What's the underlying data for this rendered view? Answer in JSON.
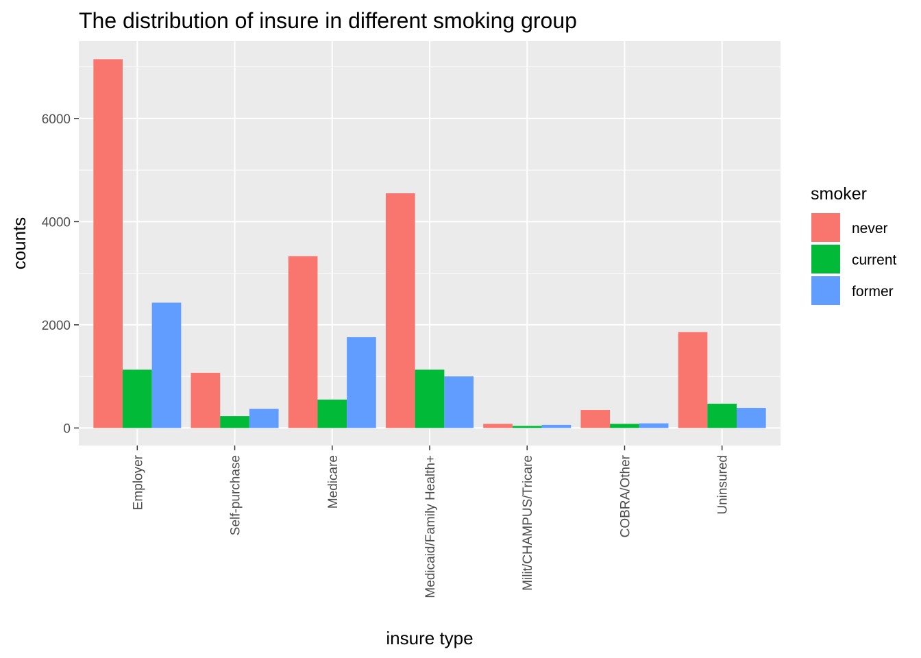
{
  "chart_data": {
    "type": "bar",
    "title": "The distribution of insure in different smoking group",
    "xlabel": "insure type",
    "ylabel": "counts",
    "categories": [
      "Employer",
      "Self-purchase",
      "Medicare",
      "Medicaid/Family Health+",
      "Milit/CHAMPUS/Tricare",
      "COBRA/Other",
      "Uninsured"
    ],
    "series": [
      {
        "name": "never",
        "color": "#F8766D",
        "values": [
          7150,
          1070,
          3330,
          4550,
          80,
          350,
          1860
        ]
      },
      {
        "name": "current",
        "color": "#00BA38",
        "values": [
          1130,
          230,
          550,
          1130,
          40,
          80,
          470
        ]
      },
      {
        "name": "former",
        "color": "#619CFF",
        "values": [
          2430,
          370,
          1760,
          1000,
          60,
          90,
          390
        ]
      }
    ],
    "yticks": [
      0,
      2000,
      4000,
      6000
    ],
    "ytick_labels": [
      "0",
      "2000",
      "4000",
      "6000"
    ],
    "ylim": [
      -340,
      7500
    ],
    "grid": true,
    "legend": {
      "title": "smoker",
      "position": "right"
    },
    "panel_background": "#EBEBEB",
    "grid_color": "#FFFFFF"
  }
}
